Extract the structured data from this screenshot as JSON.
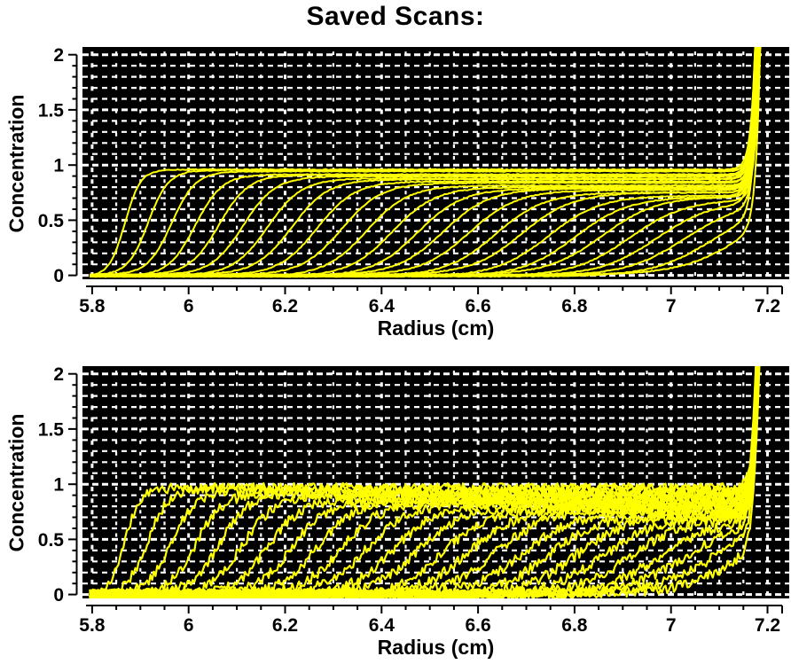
{
  "chart_data": {
    "type": "line",
    "title": "Saved Scans:",
    "xlabel": "Radius (cm)",
    "ylabel": "Concentration",
    "xlim": [
      5.78,
      7.245
    ],
    "ylim": [
      -0.035,
      2.07
    ],
    "x_major_ticks": [
      5.8,
      6.0,
      6.2,
      6.4,
      6.6,
      6.8,
      7.0,
      7.2
    ],
    "x_major_labels": [
      "5.8",
      "6",
      "6.2",
      "6.4",
      "6.6",
      "6.8",
      "7",
      "7.2"
    ],
    "x_minor_step": 0.05,
    "y_major_ticks": [
      0,
      0.5,
      1,
      1.5,
      2
    ],
    "y_major_labels": [
      "0",
      "0.5",
      "1",
      "1.5",
      "2"
    ],
    "y_minor_step": 0.1,
    "grid": {
      "style": "dashed",
      "color": "#FFFFFF",
      "background": "#000000"
    },
    "trace_color": "#FFFF00",
    "axis_color": "#000000",
    "meniscus": 5.795,
    "cell_bottom": 7.185,
    "panels": [
      {
        "name": "top",
        "noise": 0.004,
        "stroke": 2.0
      },
      {
        "name": "bottom",
        "noise": 0.045,
        "stroke": 2.2
      }
    ],
    "scans": [
      {
        "mid": 5.868,
        "width": 0.036,
        "plateau": 0.969
      },
      {
        "mid": 5.916,
        "width": 0.047,
        "plateau": 0.953
      },
      {
        "mid": 5.965,
        "width": 0.055,
        "plateau": 0.938
      },
      {
        "mid": 6.014,
        "width": 0.062,
        "plateau": 0.922
      },
      {
        "mid": 6.063,
        "width": 0.068,
        "plateau": 0.908
      },
      {
        "mid": 6.113,
        "width": 0.074,
        "plateau": 0.893
      },
      {
        "mid": 6.164,
        "width": 0.079,
        "plateau": 0.878
      },
      {
        "mid": 6.214,
        "width": 0.084,
        "plateau": 0.864
      },
      {
        "mid": 6.266,
        "width": 0.088,
        "plateau": 0.85
      },
      {
        "mid": 6.317,
        "width": 0.092,
        "plateau": 0.836
      },
      {
        "mid": 6.369,
        "width": 0.096,
        "plateau": 0.822
      },
      {
        "mid": 6.422,
        "width": 0.1,
        "plateau": 0.809
      },
      {
        "mid": 6.475,
        "width": 0.104,
        "plateau": 0.796
      },
      {
        "mid": 6.528,
        "width": 0.107,
        "plateau": 0.783
      },
      {
        "mid": 6.582,
        "width": 0.111,
        "plateau": 0.77
      },
      {
        "mid": 6.636,
        "width": 0.114,
        "plateau": 0.758
      },
      {
        "mid": 6.691,
        "width": 0.117,
        "plateau": 0.745
      },
      {
        "mid": 6.746,
        "width": 0.12,
        "plateau": 0.733
      },
      {
        "mid": 6.802,
        "width": 0.123,
        "plateau": 0.721
      },
      {
        "mid": 6.858,
        "width": 0.126,
        "plateau": 0.71
      },
      {
        "mid": 6.914,
        "width": 0.129,
        "plateau": 0.698
      },
      {
        "mid": 6.971,
        "width": 0.132,
        "plateau": 0.687
      },
      {
        "mid": 7.029,
        "width": 0.135,
        "plateau": 0.675
      },
      {
        "mid": 7.087,
        "width": 0.138,
        "plateau": 0.665
      },
      {
        "mid": 7.145,
        "width": 0.14,
        "plateau": 0.654
      }
    ]
  }
}
